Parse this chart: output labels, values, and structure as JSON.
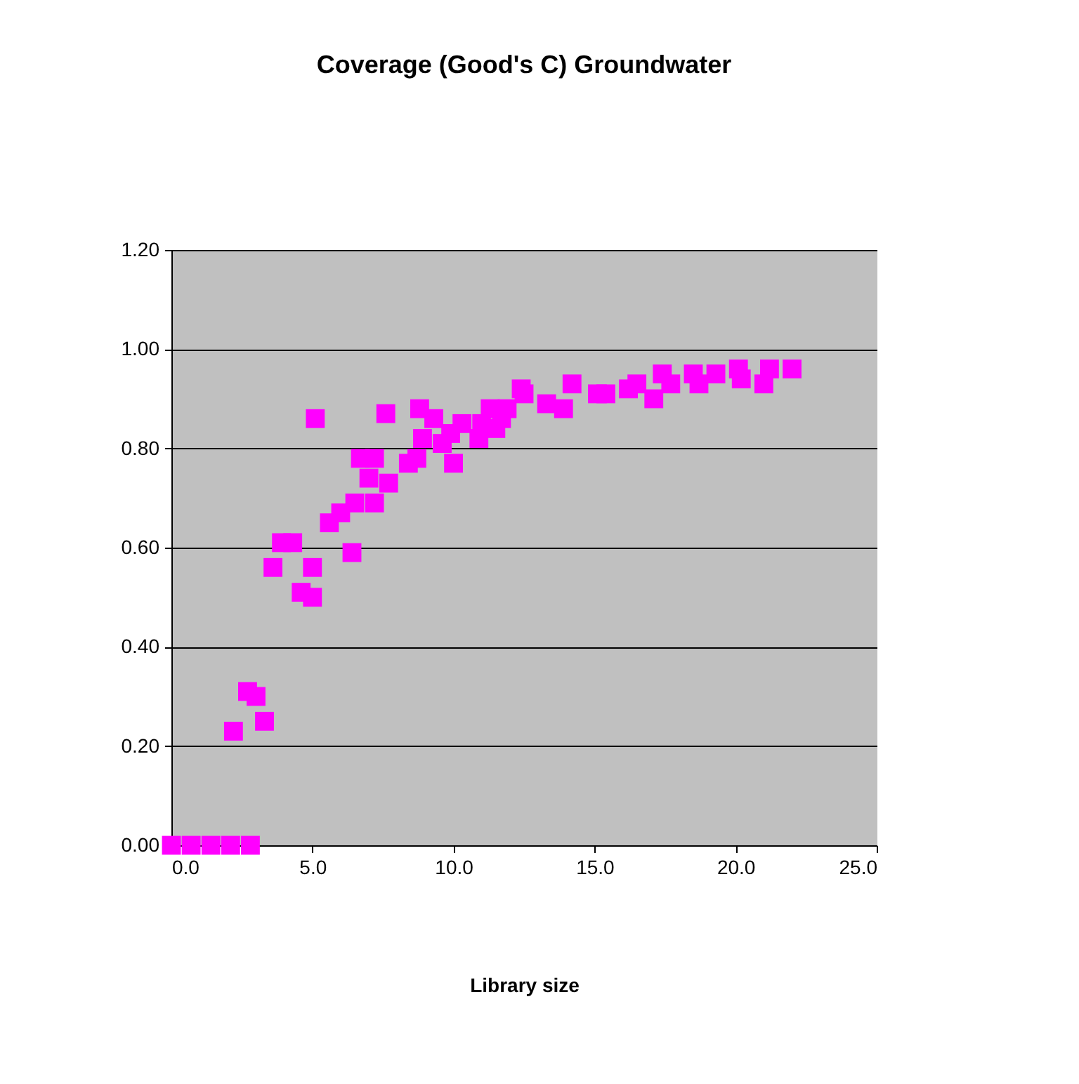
{
  "chart_data": {
    "type": "scatter",
    "title": "Coverage (Good's C) Groundwater",
    "xlabel": "Library size",
    "marker": "square",
    "grid": "y",
    "xlim": [
      0,
      25
    ],
    "ylim": [
      0,
      1.2
    ],
    "xticks": [
      {
        "value": 0,
        "label": "0.0"
      },
      {
        "value": 5,
        "label": "5.0"
      },
      {
        "value": 10,
        "label": "10.0"
      },
      {
        "value": 15,
        "label": "15.0"
      },
      {
        "value": 20,
        "label": "20.0"
      },
      {
        "value": 25,
        "label": "25.0"
      }
    ],
    "yticks": [
      {
        "value": 0,
        "label": "0.00"
      },
      {
        "value": 0.2,
        "label": "0.20"
      },
      {
        "value": 0.4,
        "label": "0.40"
      },
      {
        "value": 0.6,
        "label": "0.60"
      },
      {
        "value": 0.8,
        "label": "0.80"
      },
      {
        "value": 1.0,
        "label": "1.00"
      },
      {
        "value": 1.2,
        "label": "1.20"
      }
    ],
    "series": [
      {
        "color": "#ff00ff",
        "x": [
          0.0,
          0.7,
          1.4,
          2.1,
          2.8,
          2.2,
          2.7,
          3.0,
          3.3,
          3.6,
          3.9,
          4.3,
          4.6,
          5.0,
          5.0,
          5.1,
          5.6,
          6.0,
          6.4,
          6.5,
          6.7,
          7.0,
          7.2,
          7.2,
          7.6,
          7.7,
          8.4,
          8.7,
          8.8,
          8.9,
          9.3,
          9.6,
          9.9,
          10.0,
          10.3,
          10.9,
          11.0,
          11.3,
          11.5,
          11.7,
          11.9,
          12.4,
          12.5,
          13.3,
          13.9,
          14.2,
          15.1,
          15.4,
          16.2,
          16.5,
          17.1,
          17.4,
          17.7,
          18.5,
          18.7,
          19.3,
          20.1,
          20.2,
          21.0,
          21.2,
          22.0
        ],
        "values": [
          0,
          0,
          0,
          0,
          0,
          0.23,
          0.31,
          0.3,
          0.25,
          0.56,
          0.61,
          0.61,
          0.51,
          0.56,
          0.5,
          0.86,
          0.65,
          0.67,
          0.59,
          0.69,
          0.78,
          0.74,
          0.78,
          0.69,
          0.87,
          0.73,
          0.77,
          0.78,
          0.88,
          0.82,
          0.86,
          0.81,
          0.83,
          0.77,
          0.85,
          0.82,
          0.85,
          0.88,
          0.84,
          0.86,
          0.88,
          0.92,
          0.91,
          0.89,
          0.88,
          0.93,
          0.91,
          0.91,
          0.92,
          0.93,
          0.9,
          0.95,
          0.93,
          0.95,
          0.93,
          0.95,
          0.96,
          0.94,
          0.93,
          0.96,
          0.96
        ]
      }
    ]
  }
}
